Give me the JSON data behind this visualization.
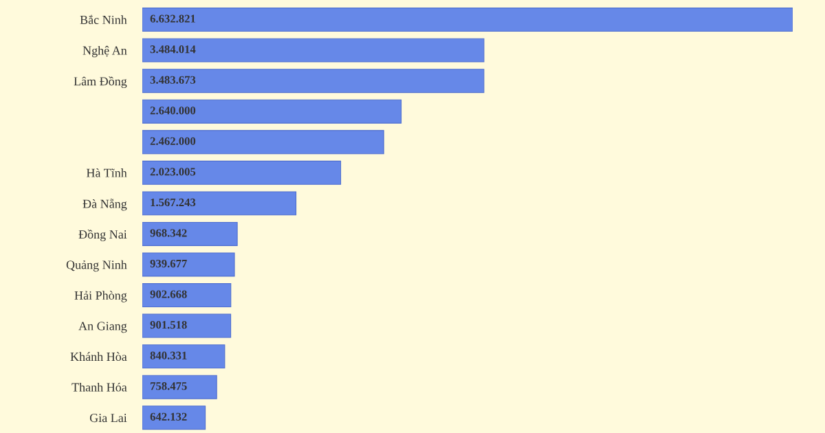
{
  "chart_data": {
    "type": "bar",
    "orientation": "horizontal",
    "categories": [
      "Bắc Ninh",
      "Nghệ An",
      "Lâm Đồng",
      null,
      null,
      "Hà Tĩnh",
      "Đà Nẵng",
      "Đồng Nai",
      "Quảng Ninh",
      "Hải Phòng",
      "An Giang",
      "Khánh Hòa",
      "Thanh Hóa",
      "Gia Lai"
    ],
    "values": [
      6632821,
      3484014,
      3483673,
      2640000,
      2462000,
      2023005,
      1567243,
      968342,
      939677,
      902668,
      901518,
      840331,
      758475,
      642132
    ],
    "value_labels": [
      "6.632.821",
      "3.484.014",
      "3.483.673",
      "2.640.000",
      "2.462.000",
      "2.023.005",
      "1.567.243",
      "968.342",
      "939.677",
      "902.668",
      "901.518",
      "840.331",
      "758.475",
      "642.132"
    ],
    "color": "#6688e8",
    "grid": false,
    "legend": false
  }
}
